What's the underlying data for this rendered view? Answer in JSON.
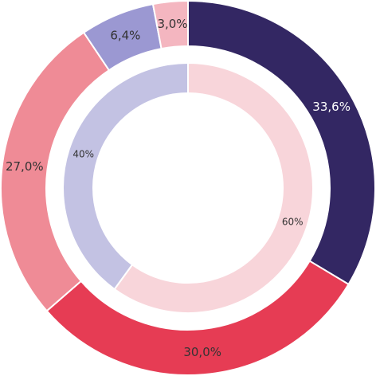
{
  "chart_data": {
    "type": "pie",
    "title": "",
    "rings": [
      {
        "name": "",
        "values": [
          33.6,
          30.0,
          27.0,
          6.4,
          3.0
        ],
        "labels": [
          "33,6%",
          "30,0%",
          "27,0%",
          "6,4%",
          "3,0%"
        ],
        "colors": [
          "#332763",
          "#e63c54",
          "#ef8b96",
          "#9b98d2",
          "#f4b6c0"
        ],
        "label_colors": [
          "#ffffff",
          "#333333",
          "#333333",
          "#333333",
          "#333333"
        ]
      },
      {
        "name": "",
        "values": [
          60,
          40
        ],
        "labels": [
          "60%",
          "40%"
        ],
        "colors": [
          "#f8d5da",
          "#c3c2e3"
        ],
        "label_colors": [
          "#333333",
          "#333333"
        ]
      }
    ]
  }
}
